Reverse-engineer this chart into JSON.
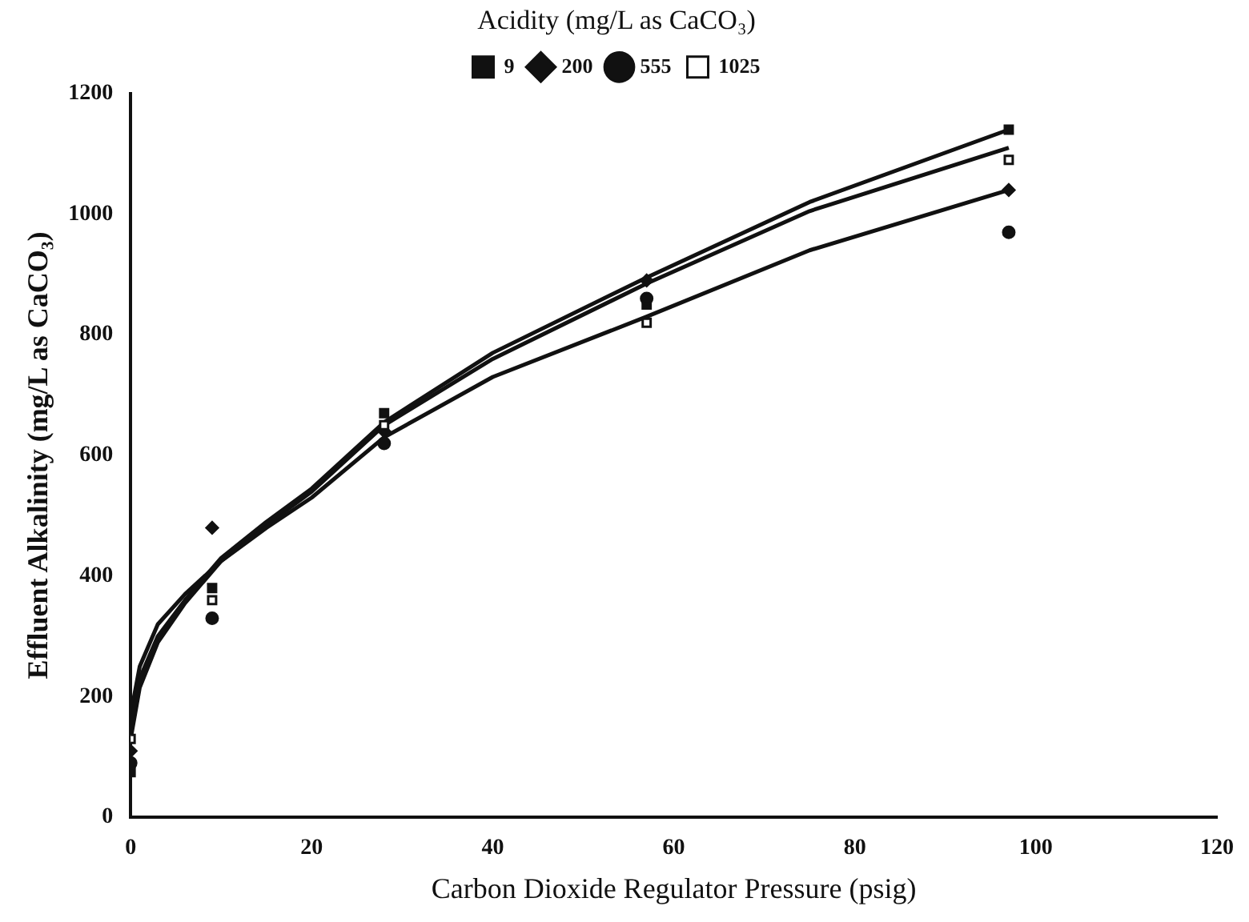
{
  "chart_data": {
    "type": "scatter",
    "xlabel": "Carbon Dioxide Regulator Pressure (psig)",
    "ylabel": "Effluent Alkalinity (mg/L as CaCO₃)",
    "legend_title": "Acidity (mg/L as CaCO₃)",
    "x": [
      0,
      9,
      28,
      57,
      97
    ],
    "series": [
      {
        "name": "9",
        "color": "#111111",
        "marker": "square",
        "values": [
          75,
          380,
          670,
          850,
          1140
        ]
      },
      {
        "name": "200",
        "color": "#111111",
        "marker": "diamond",
        "values": [
          110,
          480,
          640,
          890,
          1040
        ]
      },
      {
        "name": "555",
        "color": "#111111",
        "marker": "circle",
        "values": [
          90,
          330,
          620,
          860,
          970
        ]
      },
      {
        "name": "1025",
        "color": "#ffffff",
        "marker": "square",
        "values": [
          130,
          360,
          650,
          820,
          1090
        ]
      },
      {
        "type": "line",
        "color": "#111111",
        "marker": "none",
        "x": [
          0,
          1,
          3,
          6,
          10,
          15,
          20,
          28,
          40,
          57,
          75,
          97
        ],
        "values": [
          150,
          230,
          300,
          360,
          430,
          490,
          545,
          655,
          770,
          895,
          1020,
          1140
        ]
      },
      {
        "type": "line",
        "color": "#111111",
        "marker": "none",
        "x": [
          0,
          1,
          3,
          6,
          10,
          15,
          20,
          28,
          40,
          57,
          75,
          97
        ],
        "values": [
          130,
          215,
          290,
          355,
          425,
          485,
          540,
          650,
          760,
          885,
          1005,
          1110
        ]
      },
      {
        "type": "line",
        "color": "#111111",
        "marker": "none",
        "x": [
          0,
          1,
          3,
          6,
          10,
          15,
          20,
          28,
          40,
          57,
          75,
          97
        ],
        "values": [
          170,
          250,
          320,
          370,
          425,
          480,
          530,
          630,
          730,
          830,
          940,
          1040
        ]
      }
    ],
    "xlim": [
      0,
      120
    ],
    "xticks": [
      0,
      20,
      40,
      60,
      80,
      100,
      120
    ],
    "ylim": [
      0,
      1200
    ],
    "yticks": [
      0,
      200,
      400,
      600,
      800,
      1000,
      1200
    ],
    "grid": false,
    "legend": "top"
  }
}
